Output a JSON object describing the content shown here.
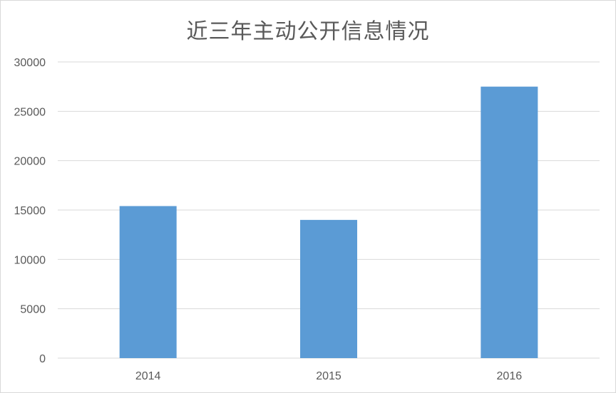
{
  "chart_data": {
    "type": "bar",
    "title": "近三年主动公开信息情况",
    "categories": [
      "2014",
      "2015",
      "2016"
    ],
    "values": [
      15400,
      14000,
      27500
    ],
    "ylim": [
      0,
      30000
    ],
    "yticks": [
      "0",
      "5000",
      "10000",
      "15000",
      "20000",
      "25000",
      "30000"
    ],
    "xlabel": "",
    "ylabel": "",
    "grid": "horizontal",
    "legend": "none",
    "colors": {
      "bar": "#5b9bd5",
      "grid": "#d9d9d9",
      "text": "#595959"
    }
  }
}
